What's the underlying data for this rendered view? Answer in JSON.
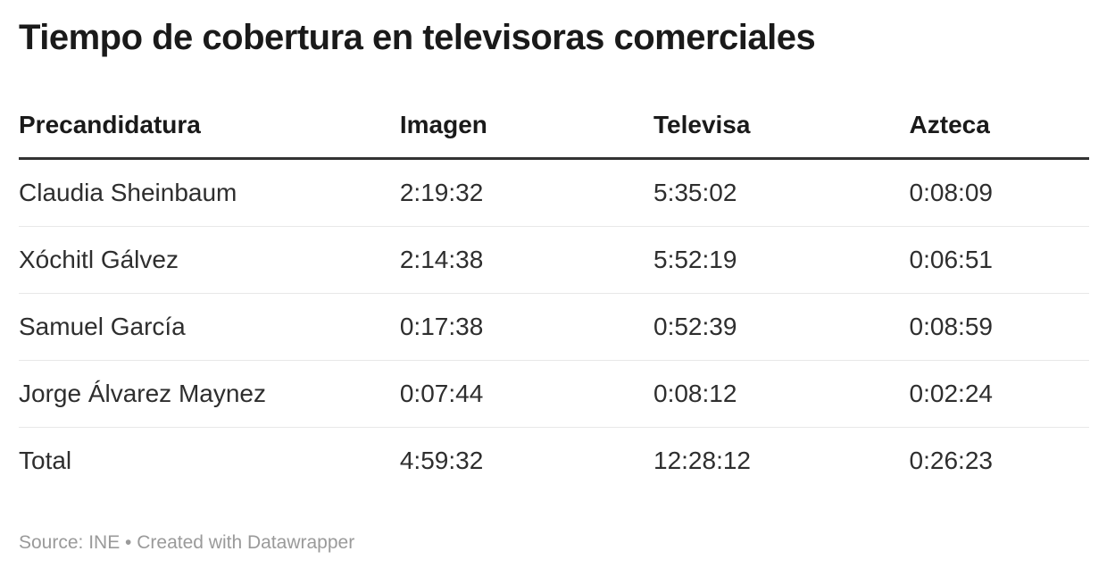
{
  "title": "Tiempo de cobertura en televisoras comerciales",
  "table": {
    "columns": [
      "Precandidatura",
      "Imagen",
      "Televisa",
      "Azteca"
    ],
    "rows": [
      [
        "Claudia Sheinbaum",
        "2:19:32",
        "5:35:02",
        "0:08:09"
      ],
      [
        "Xóchitl Gálvez",
        "2:14:38",
        "5:52:19",
        "0:06:51"
      ],
      [
        "Samuel García",
        "0:17:38",
        "0:52:39",
        "0:08:59"
      ],
      [
        "Jorge Álvarez Maynez",
        "0:07:44",
        "0:08:12",
        "0:02:24"
      ],
      [
        "Total",
        "4:59:32",
        "12:28:12",
        "0:26:23"
      ]
    ]
  },
  "footer": {
    "source_text": "Source: INE • Created with Datawrapper"
  },
  "colors": {
    "title_text": "#1a1a1a",
    "body_text": "#2e2e2e",
    "header_rule": "#333333",
    "row_divider": "#e8e8e8",
    "footer_text": "#9a9a9a",
    "background": "#ffffff"
  },
  "chart_data": {
    "type": "table",
    "title": "Tiempo de cobertura en televisoras comerciales",
    "columns": [
      "Precandidatura",
      "Imagen",
      "Televisa",
      "Azteca"
    ],
    "rows": [
      {
        "precandidatura": "Claudia Sheinbaum",
        "imagen": "2:19:32",
        "televisa": "5:35:02",
        "azteca": "0:08:09"
      },
      {
        "precandidatura": "Xóchitl Gálvez",
        "imagen": "2:14:38",
        "televisa": "5:52:19",
        "azteca": "0:06:51"
      },
      {
        "precandidatura": "Samuel García",
        "imagen": "0:17:38",
        "televisa": "0:52:39",
        "azteca": "0:08:59"
      },
      {
        "precandidatura": "Jorge Álvarez Maynez",
        "imagen": "0:07:44",
        "televisa": "0:08:12",
        "azteca": "0:02:24"
      },
      {
        "precandidatura": "Total",
        "imagen": "4:59:32",
        "televisa": "12:28:12",
        "azteca": "0:26:23"
      }
    ],
    "value_format": "h:mm:ss",
    "source": "INE",
    "attribution": "Created with Datawrapper",
    "layout": {
      "header_rule": true,
      "row_dividers": true,
      "alignment": "left",
      "grid": "horizontal-only"
    }
  }
}
